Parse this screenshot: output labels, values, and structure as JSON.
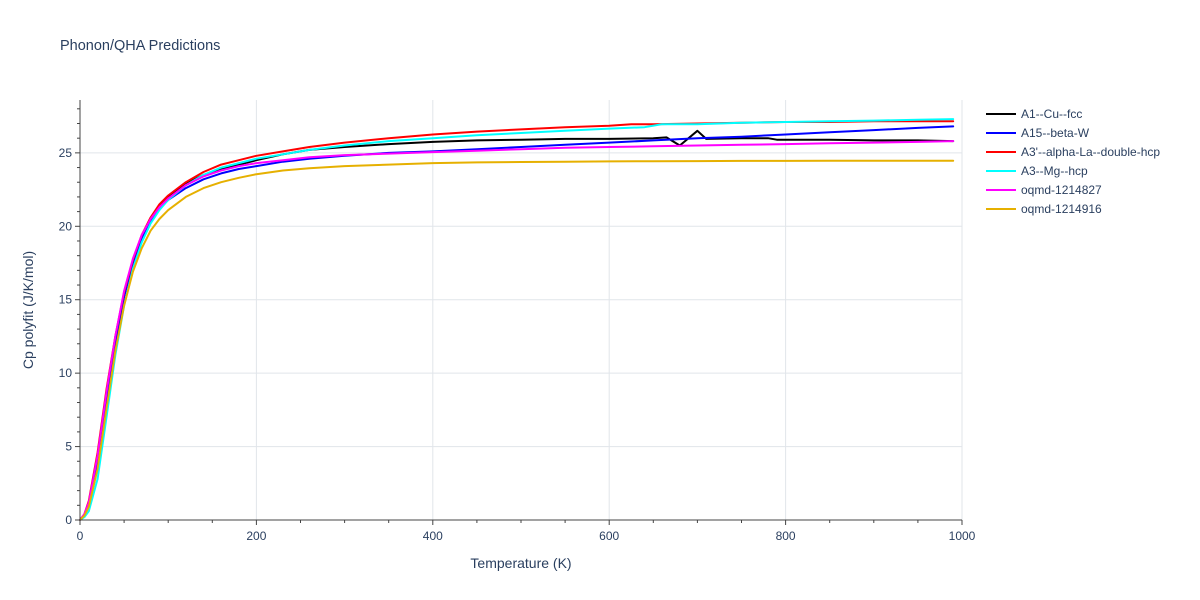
{
  "chart_data": {
    "type": "line",
    "title": "Phonon/QHA Predictions",
    "xlabel": "Temperature (K)",
    "ylabel": "Cp polyfit (J/K/mol)",
    "xlim": [
      0,
      1000
    ],
    "ylim": [
      0,
      28.6
    ],
    "x_ticks": [
      0,
      200,
      400,
      600,
      800,
      1000
    ],
    "y_ticks": [
      0,
      5,
      10,
      15,
      20,
      25
    ],
    "x_tick_labels": [
      "0",
      "200",
      "400",
      "600",
      "800",
      "1000"
    ],
    "y_tick_labels": [
      "0",
      "5",
      "10",
      "15",
      "20",
      "25"
    ],
    "grid": true,
    "legend_position": "top-right, outside plot",
    "series": [
      {
        "name": "A1--Cu--fcc",
        "color": "#000000",
        "x": [
          0,
          5,
          10,
          20,
          30,
          40,
          50,
          60,
          70,
          80,
          90,
          100,
          120,
          140,
          160,
          180,
          200,
          230,
          260,
          300,
          350,
          400,
          450,
          500,
          550,
          600,
          650,
          665,
          680,
          700,
          710,
          750,
          780,
          790,
          800,
          850,
          900,
          950,
          990
        ],
        "y": [
          0,
          0.3,
          1.0,
          3.9,
          8.2,
          12.1,
          15.3,
          17.6,
          19.3,
          20.5,
          21.4,
          22.0,
          22.9,
          23.5,
          23.9,
          24.2,
          24.5,
          24.9,
          25.2,
          25.4,
          25.6,
          25.75,
          25.85,
          25.9,
          25.95,
          25.95,
          26.0,
          26.05,
          25.5,
          26.5,
          25.95,
          26.0,
          26.0,
          25.9,
          25.9,
          25.9,
          25.85,
          25.85,
          25.8
        ]
      },
      {
        "name": "A15--beta-W",
        "color": "#0000ff",
        "x": [
          0,
          5,
          10,
          20,
          30,
          40,
          50,
          60,
          70,
          80,
          90,
          100,
          120,
          140,
          160,
          180,
          200,
          230,
          260,
          300,
          350,
          400,
          450,
          500,
          550,
          600,
          650,
          700,
          750,
          800,
          850,
          900,
          950,
          990
        ],
        "y": [
          0,
          0.3,
          1.0,
          3.8,
          8.0,
          12.0,
          15.2,
          17.5,
          19.2,
          20.4,
          21.2,
          21.8,
          22.6,
          23.2,
          23.6,
          23.9,
          24.1,
          24.4,
          24.6,
          24.8,
          25.0,
          25.1,
          25.25,
          25.4,
          25.55,
          25.7,
          25.85,
          26.0,
          26.1,
          26.25,
          26.4,
          26.55,
          26.7,
          26.8
        ]
      },
      {
        "name": "A3'--alpha-La--double-hcp",
        "color": "#ff0000",
        "x": [
          0,
          5,
          10,
          20,
          30,
          40,
          50,
          60,
          70,
          80,
          90,
          100,
          120,
          140,
          160,
          180,
          200,
          230,
          260,
          300,
          350,
          400,
          450,
          500,
          550,
          600,
          625,
          650,
          700,
          750,
          800,
          850,
          900,
          950,
          990
        ],
        "y": [
          0,
          0.4,
          1.3,
          4.6,
          8.9,
          12.5,
          15.5,
          17.7,
          19.4,
          20.6,
          21.5,
          22.1,
          23.0,
          23.7,
          24.2,
          24.5,
          24.8,
          25.1,
          25.4,
          25.7,
          26.0,
          26.25,
          26.45,
          26.6,
          26.75,
          26.85,
          26.95,
          26.95,
          27.0,
          27.05,
          27.1,
          27.1,
          27.15,
          27.15,
          27.15
        ]
      },
      {
        "name": "A3--Mg--hcp",
        "color": "#00ffff",
        "x": [
          0,
          5,
          10,
          20,
          30,
          40,
          50,
          60,
          70,
          80,
          90,
          100,
          120,
          140,
          160,
          180,
          200,
          230,
          260,
          300,
          350,
          400,
          450,
          500,
          550,
          600,
          640,
          660,
          700,
          750,
          800,
          850,
          900,
          950,
          990
        ],
        "y": [
          0,
          0.2,
          0.6,
          2.8,
          7.0,
          11.2,
          14.6,
          17.1,
          18.9,
          20.2,
          21.1,
          21.8,
          22.8,
          23.5,
          24.0,
          24.3,
          24.6,
          24.9,
          25.2,
          25.5,
          25.8,
          26.0,
          26.2,
          26.35,
          26.5,
          26.65,
          26.75,
          26.95,
          26.95,
          27.05,
          27.1,
          27.15,
          27.2,
          27.25,
          27.3
        ]
      },
      {
        "name": "oqmd-1214827",
        "color": "#ff00ff",
        "x": [
          0,
          5,
          10,
          20,
          30,
          40,
          50,
          60,
          70,
          80,
          90,
          100,
          120,
          140,
          160,
          180,
          200,
          230,
          260,
          300,
          350,
          400,
          450,
          500,
          550,
          600,
          650,
          700,
          750,
          800,
          850,
          900,
          950,
          990
        ],
        "y": [
          0,
          0.4,
          1.2,
          4.4,
          8.7,
          12.5,
          15.6,
          17.8,
          19.4,
          20.5,
          21.3,
          21.9,
          22.8,
          23.4,
          23.8,
          24.1,
          24.3,
          24.5,
          24.7,
          24.85,
          24.95,
          25.05,
          25.15,
          25.25,
          25.35,
          25.4,
          25.45,
          25.5,
          25.55,
          25.6,
          25.65,
          25.7,
          25.75,
          25.8
        ]
      },
      {
        "name": "oqmd-1214916",
        "color": "#e6b000",
        "x": [
          0,
          5,
          10,
          20,
          30,
          40,
          50,
          60,
          70,
          80,
          90,
          100,
          120,
          140,
          160,
          180,
          200,
          230,
          260,
          300,
          350,
          400,
          450,
          500,
          550,
          600,
          650,
          700,
          750,
          800,
          850,
          900,
          950,
          990
        ],
        "y": [
          0,
          0.3,
          0.9,
          3.5,
          7.6,
          11.5,
          14.6,
          16.9,
          18.5,
          19.7,
          20.5,
          21.1,
          22.0,
          22.6,
          23.0,
          23.3,
          23.55,
          23.8,
          23.95,
          24.1,
          24.2,
          24.3,
          24.35,
          24.38,
          24.4,
          24.42,
          24.43,
          24.44,
          24.45,
          24.45,
          24.46,
          24.46,
          24.47,
          24.47
        ]
      }
    ]
  }
}
